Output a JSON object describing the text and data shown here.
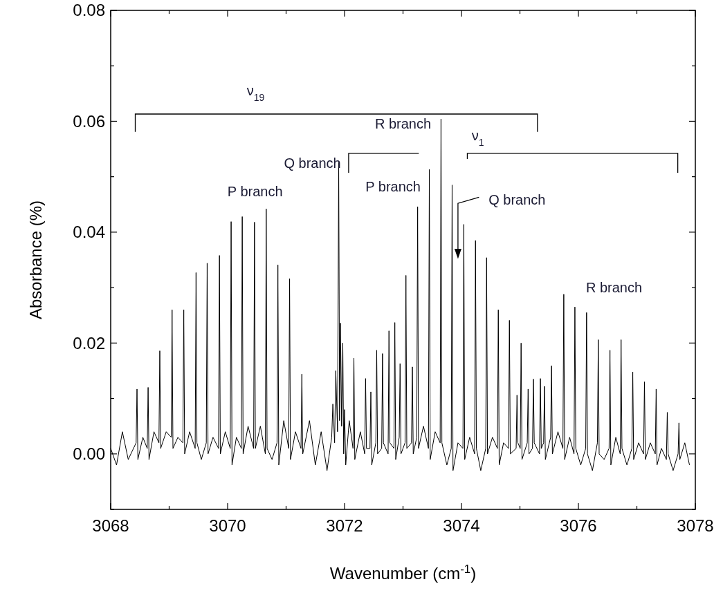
{
  "chart_data": {
    "type": "line",
    "xlabel": "Wavenumber (cm$^{-1}$)",
    "ylabel": "Absorbance (%)",
    "xlim": [
      3068,
      3078
    ],
    "ylim": [
      -0.01,
      0.08
    ],
    "xticks": [
      3068,
      {
        "value": 3069,
        "label": null
      },
      3070,
      {
        "value": 3071,
        "label": null
      },
      3072,
      {
        "value": 3073,
        "label": null
      },
      3074,
      {
        "value": 3075,
        "label": null
      },
      3076,
      {
        "value": 3077,
        "label": null
      },
      3078
    ],
    "yticks": [
      {
        "value": -0.01,
        "label": null
      },
      {
        "value": 0,
        "label": "0.00"
      },
      {
        "value": 0.01,
        "label": null
      },
      {
        "value": 0.02,
        "label": "0.02"
      },
      {
        "value": 0.03,
        "label": null
      },
      {
        "value": 0.04,
        "label": "0.04"
      },
      {
        "value": 0.05,
        "label": null
      },
      {
        "value": 0.06,
        "label": "0.06"
      },
      {
        "value": 0.07,
        "label": null
      },
      {
        "value": 0.08,
        "label": "0.08"
      }
    ],
    "grid": false,
    "marker": "none",
    "line_style": "solid",
    "annotations": [
      "ν$_{19}$",
      "P branch",
      "Q branch",
      "P branch",
      "R branch",
      "ν$_{1}$",
      "Q branch",
      "R branch"
    ],
    "series": [
      {
        "color": "#000000",
        "x": [
          3068.0,
          3068.1,
          3068.2,
          3068.3,
          3068.435,
          3068.45,
          3068.465,
          3068.55,
          3068.625,
          3068.64,
          3068.655,
          3068.74,
          3068.825,
          3068.84,
          3068.855,
          3068.95,
          3069.035,
          3069.05,
          3069.065,
          3069.15,
          3069.235,
          3069.25,
          3069.265,
          3069.35,
          3069.445,
          3069.46,
          3069.475,
          3069.55,
          3069.635,
          3069.65,
          3069.665,
          3069.75,
          3069.845,
          3069.86,
          3069.875,
          3069.96,
          3070.045,
          3070.06,
          3070.075,
          3070.15,
          3070.235,
          3070.25,
          3070.265,
          3070.35,
          3070.445,
          3070.46,
          3070.475,
          3070.56,
          3070.645,
          3070.66,
          3070.675,
          3070.76,
          3070.845,
          3070.86,
          3070.875,
          3070.96,
          3071.045,
          3071.06,
          3071.075,
          3071.16,
          3071.255,
          3071.27,
          3071.285,
          3071.4,
          3071.5,
          3071.6,
          3071.7,
          3071.78,
          3071.8,
          3071.83,
          3071.85,
          3071.88,
          3071.9,
          3071.915,
          3071.93,
          3071.95,
          3071.97,
          3071.985,
          3072.0,
          3072.02,
          3072.08,
          3072.145,
          3072.16,
          3072.175,
          3072.27,
          3072.345,
          3072.36,
          3072.375,
          3072.435,
          3072.45,
          3072.465,
          3072.535,
          3072.55,
          3072.565,
          3072.635,
          3072.65,
          3072.665,
          3072.745,
          3072.76,
          3072.775,
          3072.845,
          3072.86,
          3072.875,
          3072.935,
          3072.95,
          3072.965,
          3073.035,
          3073.05,
          3073.065,
          3073.145,
          3073.16,
          3073.175,
          3073.235,
          3073.25,
          3073.265,
          3073.35,
          3073.435,
          3073.45,
          3073.465,
          3073.55,
          3073.635,
          3073.65,
          3073.665,
          3073.75,
          3073.825,
          3073.84,
          3073.855,
          3073.94,
          3074.025,
          3074.04,
          3074.055,
          3074.14,
          3074.225,
          3074.24,
          3074.255,
          3074.33,
          3074.415,
          3074.43,
          3074.445,
          3074.53,
          3074.615,
          3074.63,
          3074.645,
          3074.72,
          3074.805,
          3074.82,
          3074.835,
          3074.935,
          3074.95,
          3074.965,
          3075.005,
          3075.02,
          3075.035,
          3075.125,
          3075.14,
          3075.155,
          3075.215,
          3075.23,
          3075.245,
          3075.335,
          3075.35,
          3075.365,
          3075.405,
          3075.42,
          3075.435,
          3075.525,
          3075.54,
          3075.555,
          3075.65,
          3075.735,
          3075.75,
          3075.765,
          3075.85,
          3075.925,
          3075.94,
          3075.955,
          3076.04,
          3076.125,
          3076.14,
          3076.155,
          3076.24,
          3076.325,
          3076.34,
          3076.355,
          3076.44,
          3076.525,
          3076.54,
          3076.555,
          3076.64,
          3076.715,
          3076.73,
          3076.745,
          3076.83,
          3076.915,
          3076.93,
          3076.945,
          3077.03,
          3077.115,
          3077.13,
          3077.145,
          3077.23,
          3077.315,
          3077.33,
          3077.345,
          3077.42,
          3077.505,
          3077.52,
          3077.535,
          3077.62,
          3077.705,
          3077.72,
          3077.735,
          3077.82,
          3077.9
        ],
        "values": [
          0.001,
          -0.002,
          0.004,
          -0.001,
          0.002,
          0.0117,
          -0.001,
          0.003,
          0.001,
          0.012,
          -0.001,
          0.004,
          0.002,
          0.0186,
          0.001,
          0.004,
          0.003,
          0.026,
          0.001,
          0.003,
          0.002,
          0.026,
          0.0,
          0.004,
          0.001,
          0.0327,
          0.002,
          -0.001,
          0.002,
          0.0344,
          0.0,
          0.003,
          0.001,
          0.0358,
          0.0,
          0.004,
          0.001,
          0.0419,
          -0.002,
          0.003,
          0.001,
          0.0428,
          0.0,
          0.005,
          0.001,
          0.0418,
          0.001,
          0.005,
          0.0,
          0.0442,
          0.001,
          -0.001,
          0.002,
          0.0341,
          -0.002,
          0.006,
          0.001,
          0.0316,
          -0.001,
          0.004,
          0.001,
          0.0144,
          0.0,
          0.006,
          -0.002,
          0.004,
          -0.003,
          0.003,
          0.009,
          0.002,
          0.015,
          0.004,
          0.0526,
          0.006,
          0.0236,
          0.005,
          0.02,
          0.0,
          0.008,
          -0.002,
          0.006,
          0.001,
          0.0173,
          -0.001,
          0.004,
          0.0,
          0.0136,
          0.001,
          0.001,
          0.0112,
          -0.002,
          0.002,
          0.0187,
          0.0,
          0.001,
          0.0181,
          0.002,
          0.0,
          0.0222,
          0.002,
          0.001,
          0.0237,
          -0.001,
          0.003,
          0.0163,
          0.0,
          0.002,
          0.0322,
          0.001,
          0.002,
          0.0157,
          0.0,
          0.003,
          0.0446,
          0.001,
          0.005,
          0.001,
          0.0513,
          -0.001,
          0.004,
          0.002,
          0.0604,
          0.002,
          -0.002,
          0.001,
          0.0485,
          -0.003,
          0.002,
          0.001,
          0.0414,
          -0.001,
          0.003,
          0.0,
          0.0385,
          0.001,
          -0.003,
          0.001,
          0.0354,
          0.0,
          0.003,
          0.001,
          0.026,
          -0.002,
          0.002,
          0.001,
          0.0241,
          0.0,
          0.001,
          0.0106,
          0.002,
          0.001,
          0.02,
          -0.001,
          0.002,
          0.0117,
          0.0,
          0.001,
          0.0135,
          0.002,
          0.0,
          0.0136,
          0.001,
          0.002,
          0.0122,
          -0.001,
          0.003,
          0.0159,
          0.0,
          0.004,
          0.001,
          0.0288,
          -0.001,
          0.003,
          0.0,
          0.0265,
          0.001,
          -0.002,
          0.001,
          0.0255,
          0.0,
          -0.003,
          0.002,
          0.0206,
          0.0,
          -0.001,
          0.001,
          0.0187,
          -0.002,
          0.003,
          0.0,
          0.0206,
          0.001,
          -0.002,
          0.001,
          0.0148,
          -0.001,
          0.002,
          0.0,
          0.013,
          -0.001,
          0.002,
          0.0,
          0.0117,
          -0.002,
          0.001,
          -0.001,
          0.0075,
          0.0,
          -0.003,
          0.0,
          0.0056,
          -0.001,
          0.002,
          -0.002
        ]
      }
    ]
  }
}
